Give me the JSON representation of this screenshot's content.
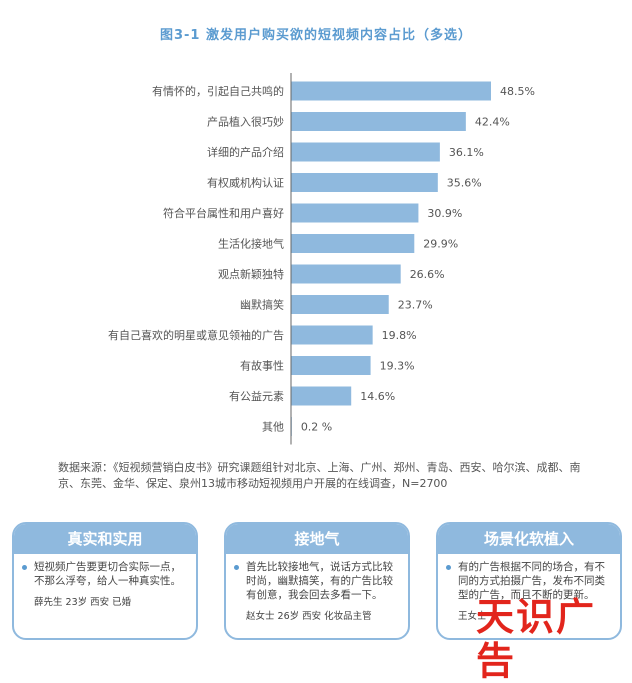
{
  "title": "图3-1   激发用户购买欲的短视频内容占比（多选）",
  "chart_data": {
    "type": "bar",
    "orientation": "horizontal",
    "categories": [
      "有情怀的，引起自己共鸣的",
      "产品植入很巧妙",
      "详细的产品介绍",
      "有权威机构认证",
      "符合平台属性和用户喜好",
      "生活化接地气",
      "观点新颖独特",
      "幽默搞笑",
      "有自己喜欢的明星或意见领袖的广告",
      "有故事性",
      "有公益元素",
      "其他"
    ],
    "values": [
      48.5,
      42.4,
      36.1,
      35.6,
      30.9,
      29.9,
      26.6,
      23.7,
      19.8,
      19.3,
      14.6,
      0.2
    ],
    "value_labels": [
      "48.5%",
      "42.4%",
      "36.1%",
      "35.6%",
      "30.9%",
      "29.9%",
      "26.6%",
      "23.7%",
      "19.8%",
      "19.3%",
      "14.6%",
      "0.2 %"
    ],
    "bar_color": "#8fb9de"
  },
  "source": "数据来源：《短视频营销白皮书》研究课题组针对北京、上海、广州、郑州、青岛、西安、哈尔滨、成都、南京、东莞、金华、保定、泉州13城市移动短视频用户开展的在线调查，N=2700",
  "cards": [
    {
      "title": "真实和实用",
      "text": "短视频广告要更切合实际一点，不那么浮夸，给人一种真实性。",
      "author": "薛先生  23岁  西安  已婚"
    },
    {
      "title": "接地气",
      "text": "首先比较接地气，说话方式比较时尚，幽默搞笑，有的广告比较有创意，我会回去多看一下。",
      "author": "赵女士  26岁  西安  化妆品主管"
    },
    {
      "title": "场景化软植入",
      "text": "有的广告根据不同的场合，有不同的方式拍摄广告，发布不同类型的广告，而且不断的更新。",
      "author": "王女士"
    }
  ],
  "logo": "天识广告"
}
